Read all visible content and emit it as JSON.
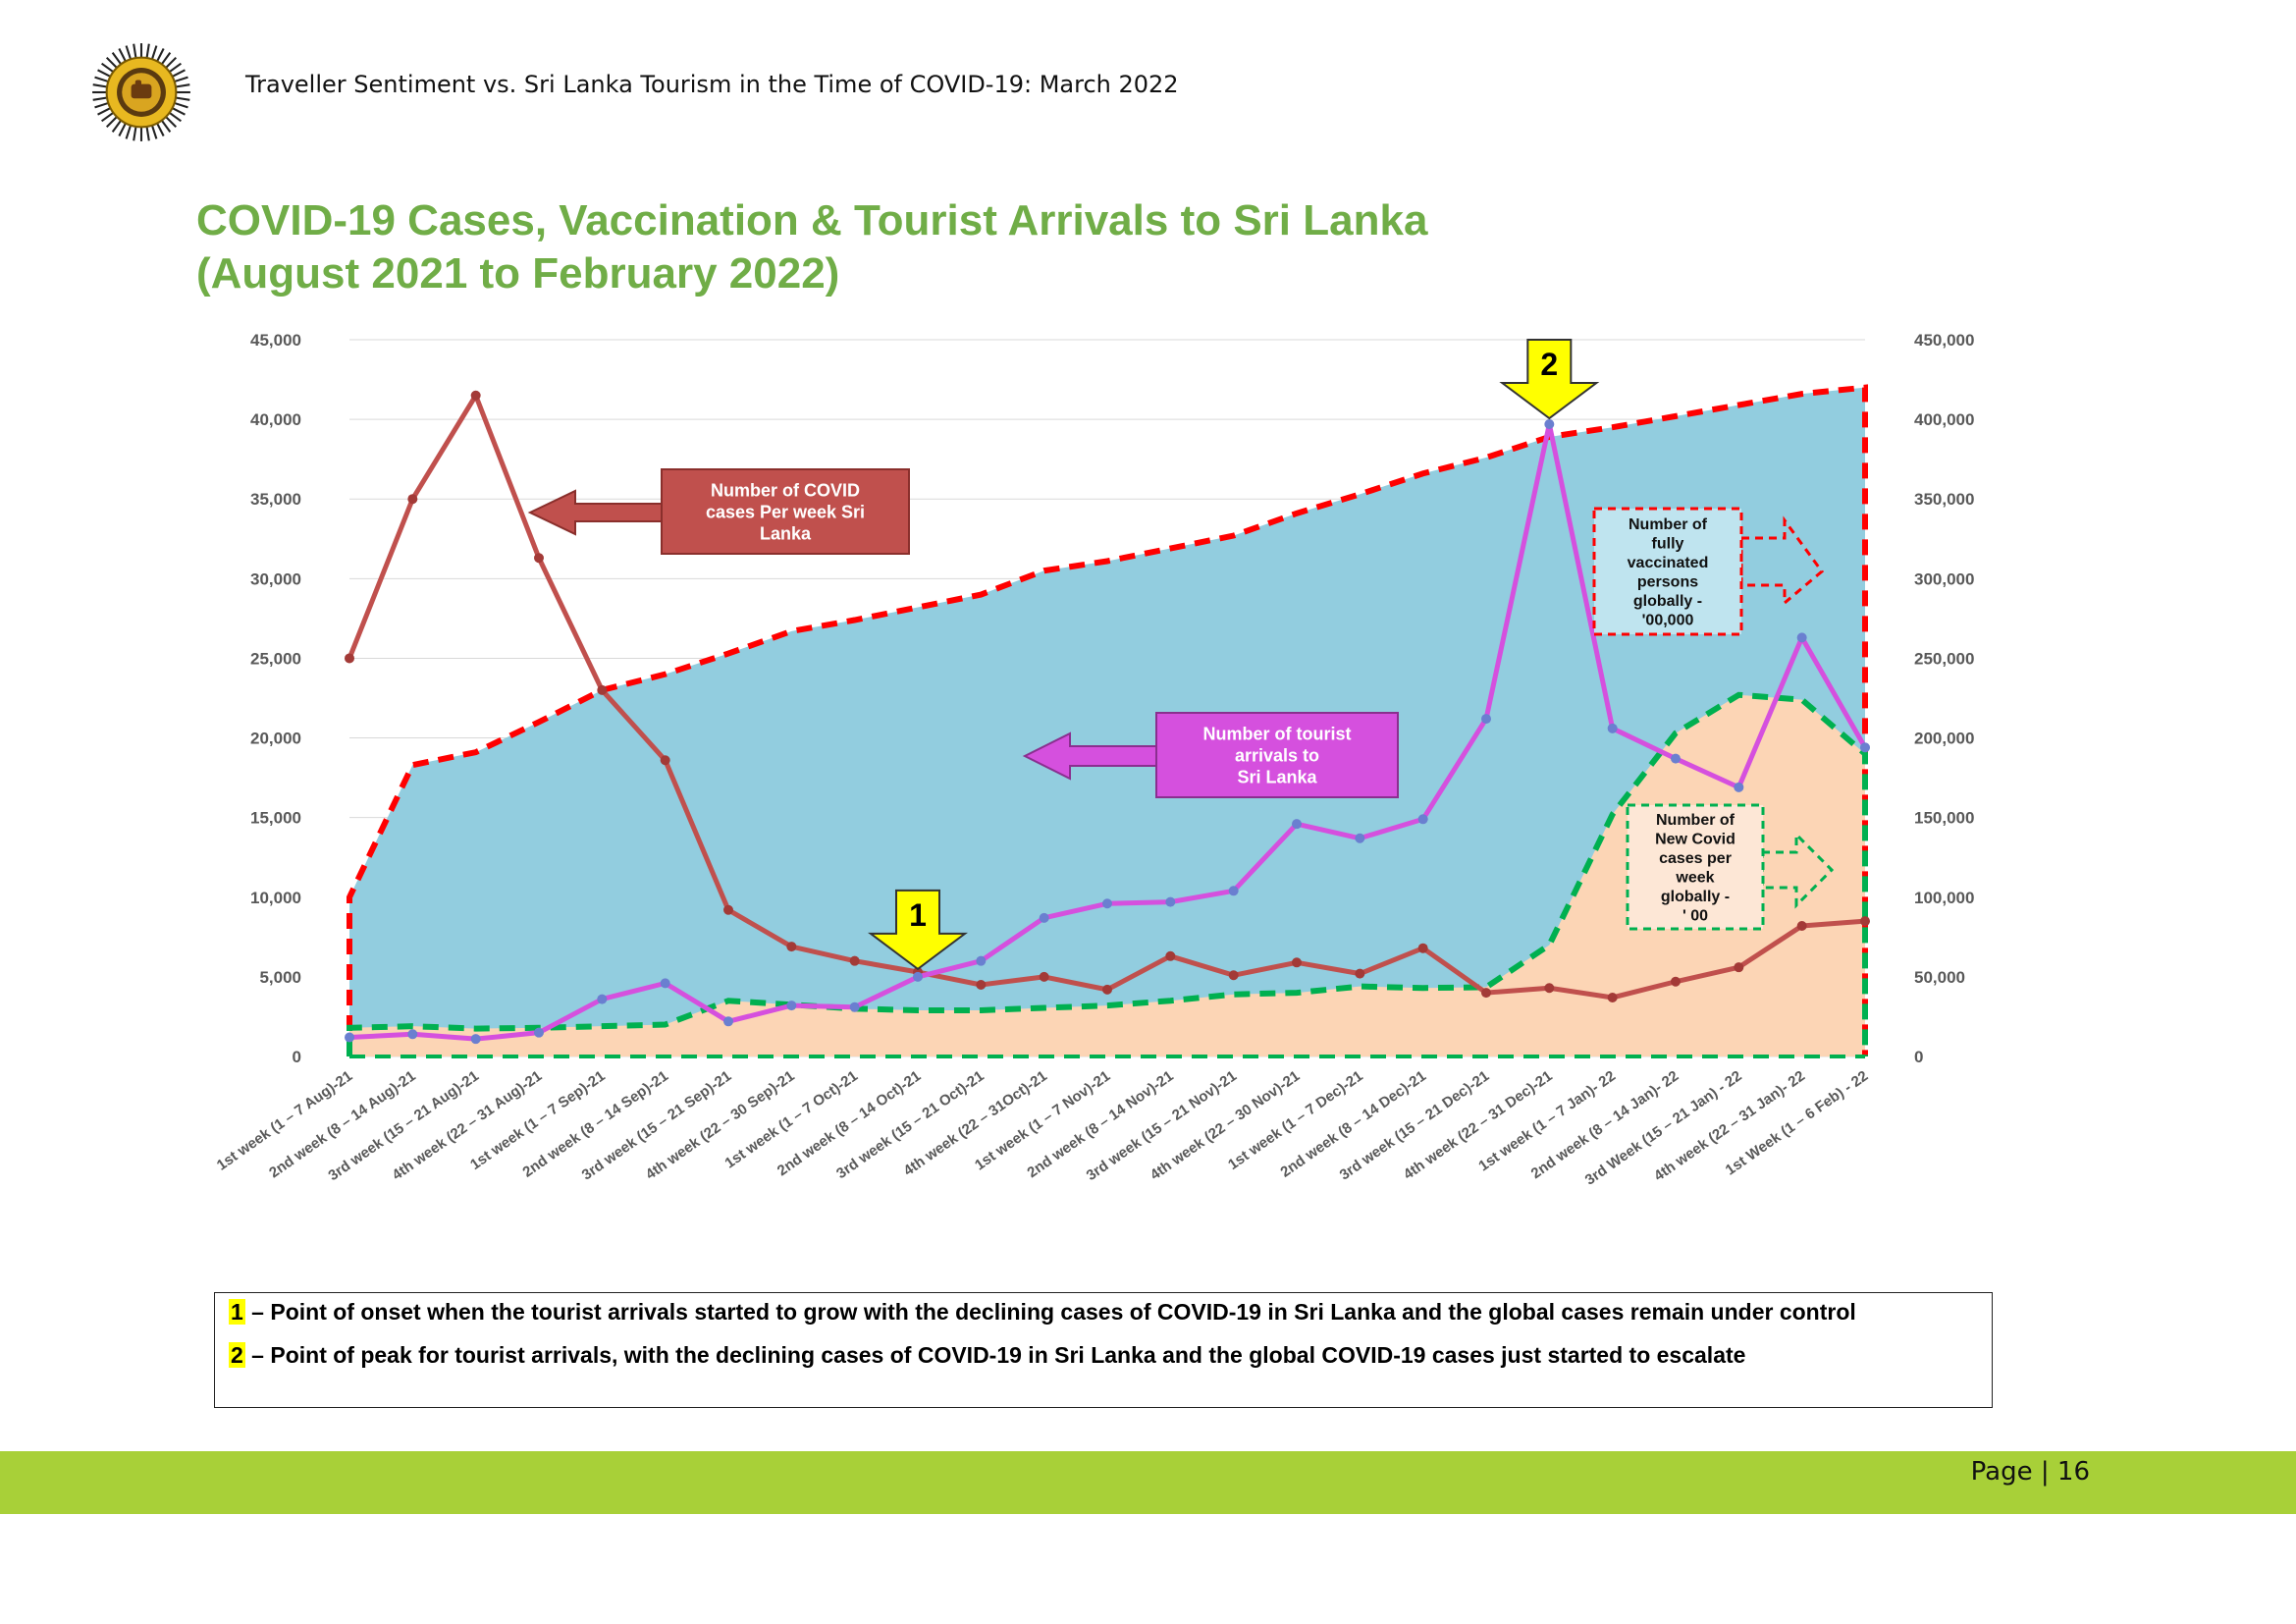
{
  "header": {
    "text": "Traveller Sentiment vs. Sri Lanka Tourism in the Time of COVID-19: March 2022"
  },
  "title": {
    "line1": "COVID-19 Cases, Vaccination & Tourist Arrivals to Sri Lanka",
    "line2": "(August 2021 to February 2022)"
  },
  "colors": {
    "title_green": "#70ad47",
    "covid_sl": "#c0504d",
    "tourist": "#d550de",
    "vaccinated_line": "#ff0000",
    "vaccinated_fill": "#92cddf",
    "global_line": "#00b050",
    "global_fill": "#fcd5b5",
    "marker": "#ffff00",
    "footer_bar": "#a8d038"
  },
  "chart_data": {
    "type": "line",
    "categories": [
      "1st week (1 – 7 Aug)-21",
      "2nd week (8 – 14 Aug)-21",
      "3rd week (15 – 21 Aug)-21",
      "4th week (22 – 31 Aug)-21",
      "1st week (1 – 7 Sep)-21",
      "2nd week (8 – 14 Sep)-21",
      "3rd week (15 – 21 Sep)-21",
      "4th week (22 – 30 Sep)-21",
      "1st week (1 – 7 Oct)-21",
      "2nd week (8 – 14 Oct)-21",
      "3rd week (15 – 21 Oct)-21",
      "4th week (22 – 31Oct)-21",
      "1st week (1 – 7 Nov)-21",
      "2nd week (8 – 14 Nov)-21",
      "3rd week (15 – 21 Nov)-21",
      "4th week (22 – 30 Nov)-21",
      "1st week (1 – 7 Dec)-21",
      "2nd week (8 – 14 Dec)-21",
      "3rd week (15 – 21 Dec)-21",
      "4th week (22 – 31 Dec)-21",
      "1st week (1 – 7 Jan)- 22",
      "2nd week (8 – 14 Jan)- 22",
      "3rd Week (15 – 21 Jan) - 22",
      "4th week (22 – 31 Jan)- 22",
      "1st Week (1 – 6 Feb) - 22"
    ],
    "yleft": {
      "ylim": [
        0,
        45000
      ],
      "ticks": [
        "0",
        "5,000",
        "10,000",
        "15,000",
        "20,000",
        "25,000",
        "30,000",
        "35,000",
        "40,000",
        "45,000"
      ]
    },
    "yright": {
      "ylim": [
        0,
        450000
      ],
      "ticks": [
        "0",
        "50,000",
        "100,000",
        "150,000",
        "200,000",
        "250,000",
        "300,000",
        "350,000",
        "400,000",
        "450,000"
      ]
    },
    "grid": "horizontal",
    "series": [
      {
        "key": "vaccinated",
        "label": "Number of fully vaccinated persons globally - '00,000",
        "kind": "area-dashed",
        "axis": "right",
        "values": [
          100000,
          183000,
          191000,
          210000,
          230000,
          240000,
          253000,
          267000,
          274000,
          282000,
          290000,
          305000,
          311000,
          319000,
          327000,
          341000,
          353000,
          366000,
          376000,
          389000,
          395000,
          402000,
          409000,
          416000,
          420000
        ]
      },
      {
        "key": "global",
        "label": "Number of New Covid cases per week globally - ' 00",
        "kind": "area-dashed",
        "axis": "right",
        "values": [
          18000,
          19000,
          17500,
          18000,
          19000,
          20000,
          35000,
          32500,
          30000,
          29000,
          29000,
          30500,
          32000,
          35000,
          39000,
          40000,
          44000,
          43000,
          43500,
          70000,
          152000,
          203000,
          227000,
          224000,
          190000
        ]
      },
      {
        "key": "covid_sl",
        "label": "Number of COVID cases Per week  Sri Lanka",
        "kind": "line",
        "axis": "left",
        "values": [
          25000,
          35000,
          41500,
          31300,
          23000,
          18600,
          9200,
          6900,
          6000,
          5300,
          4500,
          5000,
          4200,
          6300,
          5100,
          5900,
          5200,
          6800,
          4000,
          4300,
          3700,
          4700,
          5600,
          8200,
          8500
        ]
      },
      {
        "key": "tourist",
        "label": "Number of tourist arrivals to Sri Lanka",
        "kind": "line",
        "axis": "left",
        "values": [
          1200,
          1400,
          1100,
          1500,
          3600,
          4600,
          2200,
          3200,
          3100,
          5000,
          6000,
          8700,
          9600,
          9700,
          10400,
          14600,
          13700,
          14900,
          21200,
          39700,
          20600,
          18700,
          16900,
          26300,
          19400
        ]
      }
    ],
    "annotations": [
      {
        "key": "covid_sl",
        "lines": [
          "Number of COVID",
          "cases Per week  Sri",
          "Lanka"
        ]
      },
      {
        "key": "tourist",
        "lines": [
          "Number of tourist",
          "arrivals to",
          "Sri Lanka"
        ]
      },
      {
        "key": "vaccinated",
        "lines": [
          "Number of",
          "fully",
          "vaccinated",
          "persons",
          "globally -",
          "'00,000"
        ]
      },
      {
        "key": "global",
        "lines": [
          "Number of",
          "New Covid",
          "cases per",
          "week",
          "globally -",
          "' 00"
        ]
      }
    ],
    "markers": [
      {
        "label": "1",
        "category_index": 9
      },
      {
        "label": "2",
        "category_index": 19
      }
    ]
  },
  "legend_notes": [
    {
      "num": "1",
      "text": " – Point of onset when the tourist arrivals started to grow with the declining cases of COVID-19 in Sri Lanka and the global cases remain under control"
    },
    {
      "num": "2",
      "text": " – Point of peak for tourist arrivals, with the declining cases of COVID-19 in Sri Lanka and the global COVID-19 cases just started to escalate"
    }
  ],
  "footer": {
    "page": "Page | 16"
  }
}
